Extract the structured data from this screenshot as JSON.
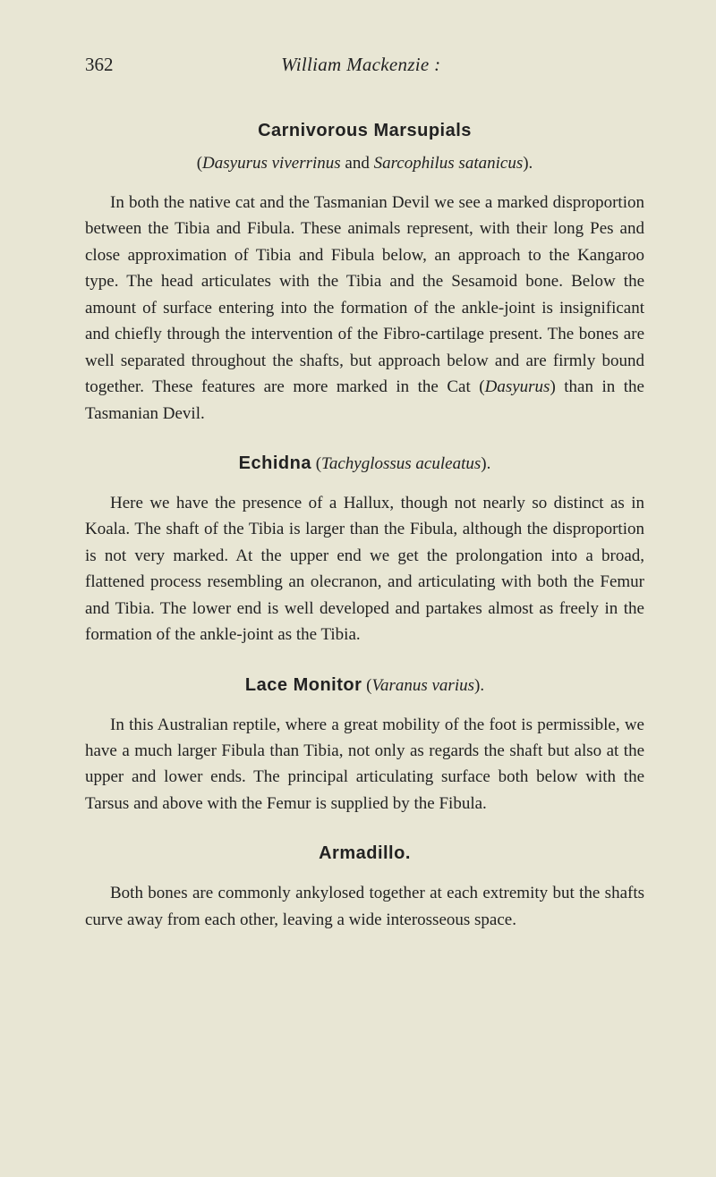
{
  "page_number": "362",
  "running_author": "William Mackenzie :",
  "sections": {
    "carnivorous": {
      "title": "Carnivorous Marsupials",
      "subtitle_open": "(",
      "subtitle_sp1": "Dasyurus viverrinus",
      "subtitle_mid": " and ",
      "subtitle_sp2": "Sarcophilus satanicus",
      "subtitle_close": ").",
      "para1_a": "In both the native cat and the Tasmanian Devil we see a marked disproportion between the Tibia and Fibula. These animals represent, with their long Pes and close approximation of Tibia and Fibula below, an approach to the Kangaroo type. The head articulates with the Tibia and the Sesamoid bone. Below the amount of surface entering into the formation of the ankle-joint is insignificant and chiefly through the interven­tion of the Fibro-cartilage present. The bones are well sepa­rated throughout the shafts, but approach below and are firmly bound together. These features are more marked in the Cat (",
      "para1_sp": "Dasyurus",
      "para1_b": ") than in the Tasmanian Devil."
    },
    "echidna": {
      "title": "Echidna",
      "sub_open": " (",
      "sub_sp": "Tachyglossus aculeatus",
      "sub_close": ").",
      "para": "Here we have the presence of a Hallux, though not nearly so distinct as in Koala. The shaft of the Tibia is larger than the Fibula, although the disproportion is not very marked. At the upper end we get the prolongation into a broad, flattened process resembling an olecranon, and articulating with both the Femur and Tibia. The lower end is well developed and par­takes almost as freely in the formation of the ankle-joint as the Tibia."
    },
    "lace": {
      "title": "Lace Monitor",
      "sub_open": " (",
      "sub_sp": "Varanus varius",
      "sub_close": ").",
      "para": "In this Australian reptile, where a great mobility of the foot is permissible, we have a much larger Fibula than Tibia, not only as regards the shaft but also at the upper and lower ends. The principal articulating surface both below with the Tarsus and above with the Femur is supplied by the Fibula."
    },
    "armadillo": {
      "title": "Armadillo.",
      "para": "Both bones are commonly ankylosed together at each ex­tremity but the shafts curve away from each other, leaving a wide interosseous space."
    }
  }
}
